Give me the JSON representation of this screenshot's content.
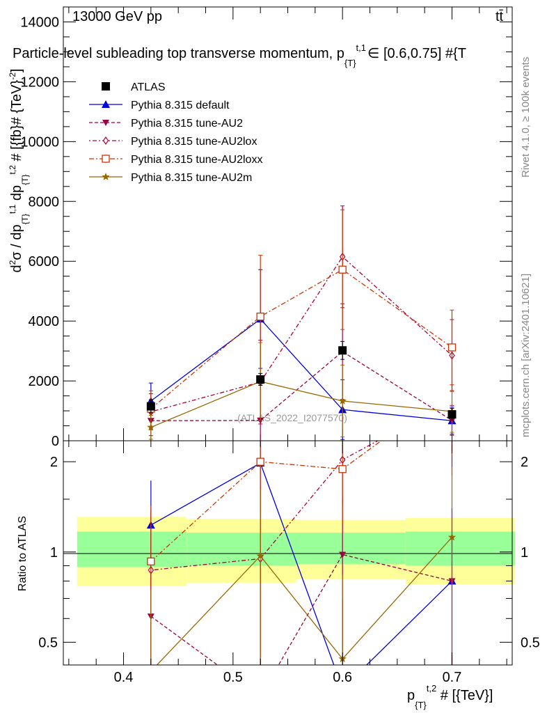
{
  "header": {
    "energy": "13000 GeV pp",
    "process": "tt̄"
  },
  "chart_data": [
    {
      "type": "line",
      "title": "Particle-level subleading top transverse momentum, p_{T}^{t,1} ∈ [0.6,0.75] #{T",
      "title_display": "Particle-level subleading top transverse momentum, p",
      "title_sub": "{T}",
      "title_sup": "t,1",
      "title_tail": "∈ [0.6,0.75] #{T",
      "ylabel": "d²σ / dp_{T}^{t,1} dp_{T}^{t,2} # [{fb}# {TeV}⁻²]",
      "xlabel": "p_{T}^{t,2} # [{TeV}]",
      "xlim": [
        0.345,
        0.755
      ],
      "ylim": [
        0,
        14500
      ],
      "yticks": [
        0,
        2000,
        4000,
        6000,
        8000,
        10000,
        12000,
        14000
      ],
      "yticklabels": [
        "0",
        "2000",
        "4000",
        "6000",
        "8000",
        "10000",
        "12000",
        "14000"
      ],
      "watermark": "(ATLAS_2022_I2077570)",
      "x": [
        0.425,
        0.525,
        0.6,
        0.7
      ],
      "series": [
        {
          "name": "ATLAS",
          "color": "#000000",
          "marker": "square",
          "values": [
            1150,
            2050,
            3020,
            880
          ],
          "err": [
            220,
            200,
            300,
            200
          ]
        },
        {
          "name": "Pythia 8.315 default",
          "color": "#0000dd",
          "marker": "triangle-up",
          "dash": "",
          "values": [
            1330,
            4070,
            1040,
            670
          ],
          "err": [
            600,
            1650,
            1000,
            450
          ]
        },
        {
          "name": "Pythia 8.315 tune-AU2",
          "color": "#990044",
          "marker": "triangle-down",
          "dash": "5,3",
          "values": [
            670,
            680,
            2980,
            680
          ],
          "err": [
            500,
            1400,
            1600,
            500
          ]
        },
        {
          "name": "Pythia 8.315 tune-AU2lox",
          "color": "#aa0033",
          "marker": "diamond",
          "dash": "2,3,6,3",
          "values": [
            970,
            1960,
            6150,
            2850
          ],
          "err": [
            600,
            1400,
            1700,
            1200
          ]
        },
        {
          "name": "Pythia 8.315 tune-AU2loxx",
          "color": "#cc3300",
          "marker": "open-square",
          "dash": "7,3,2,3",
          "values": [
            1070,
            4150,
            5720,
            3120
          ],
          "err": [
            600,
            2050,
            2000,
            1250
          ]
        },
        {
          "name": "Pythia 8.315 tune-AU2m",
          "color": "#996600",
          "marker": "star",
          "dash": "",
          "values": [
            450,
            1980,
            1330,
            980
          ],
          "err": [
            400,
            1300,
            1200,
            700
          ]
        }
      ]
    },
    {
      "type": "line",
      "title": "Ratio to ATLAS",
      "ylabel": "Ratio to ATLAS",
      "xlabel": "p_{T}^{t,2} # [{TeV}]",
      "xlim": [
        0.345,
        0.755
      ],
      "ylim": [
        0.42,
        2.35
      ],
      "yscale": "log",
      "yticks": [
        0.5,
        1,
        2
      ],
      "yticklabels": [
        "0.5",
        "1",
        "2"
      ],
      "xticks": [
        0.4,
        0.5,
        0.6,
        0.7
      ],
      "xticklabels": [
        "0.4",
        "0.5",
        "0.6",
        "0.7"
      ],
      "bands": {
        "edges": [
          0.35,
          0.45,
          0.55,
          0.65,
          0.75
        ],
        "stat_lo": [
          0.89,
          0.9,
          0.91,
          0.9
        ],
        "stat_hi": [
          1.17,
          1.16,
          1.16,
          1.17
        ],
        "total_lo": [
          0.77,
          0.79,
          0.81,
          0.78
        ],
        "total_hi": [
          1.31,
          1.29,
          1.28,
          1.3
        ],
        "stat_color": "#99ff99",
        "total_color": "#ffff99"
      },
      "x": [
        0.425,
        0.525,
        0.6,
        0.7
      ],
      "series": [
        {
          "name": "Pythia 8.315 default",
          "values": [
            1.23,
            1.98,
            0.35,
            0.8
          ],
          "err": [
            0.5,
            0.8,
            0.35,
            0.6
          ]
        },
        {
          "name": "Pythia 8.315 tune-AU2",
          "values": [
            0.61,
            0.33,
            0.98,
            0.8
          ],
          "err": [
            0.4,
            0.7,
            0.55,
            0.6
          ]
        },
        {
          "name": "Pythia 8.315 tune-AU2lox",
          "values": [
            0.87,
            0.95,
            2.03,
            3.2
          ],
          "err": [
            0.5,
            0.7,
            0.6,
            1.4
          ]
        },
        {
          "name": "Pythia 8.315 tune-AU2loxx",
          "values": [
            0.93,
            2.0,
            1.89,
            3.5
          ],
          "err": [
            0.5,
            1.0,
            0.65,
            1.4
          ]
        },
        {
          "name": "Pythia 8.315 tune-AU2m",
          "values": [
            0.4,
            0.97,
            0.44,
            1.12
          ],
          "err": [
            0.35,
            0.65,
            0.4,
            0.8
          ]
        }
      ]
    }
  ],
  "side_text": {
    "rivet": "Rivet 4.1.0, ≥ 100k events",
    "mcplots": "mcplots.cern.ch [arXiv:2401.10621]"
  }
}
